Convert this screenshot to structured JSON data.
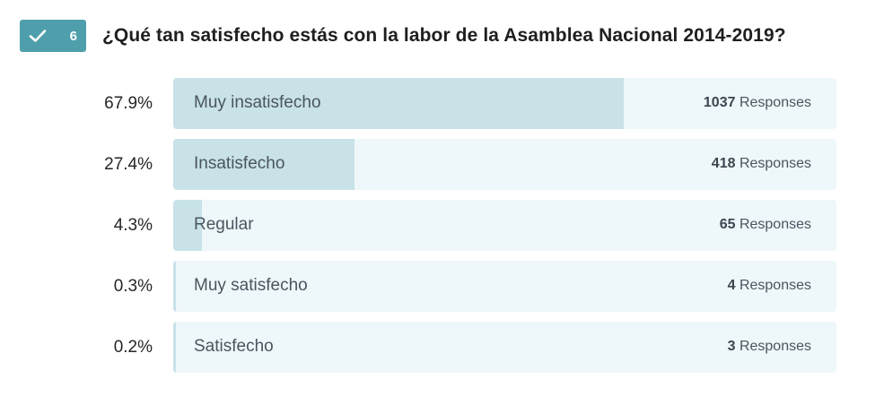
{
  "question": {
    "number": "6",
    "title": "¿Qué tan satisfecho estás con la labor de la Asamblea Nacional 2014-2019?",
    "badge_icon": "checkmark-icon"
  },
  "colors": {
    "badge": "#4e9fab",
    "track": "#eef7f9",
    "fill": "#c8e2e8",
    "title": "#1f1f1f"
  },
  "responses_word": "Responses",
  "chart_data": {
    "type": "bar",
    "orientation": "horizontal",
    "categories": [
      "Muy insatisfecho",
      "Insatisfecho",
      "Regular",
      "Muy satisfecho",
      "Satisfecho"
    ],
    "percentages": [
      "67.9%",
      "27.4%",
      "4.3%",
      "0.3%",
      "0.2%"
    ],
    "values": [
      67.9,
      27.4,
      4.3,
      0.3,
      0.2
    ],
    "responses": [
      1037,
      418,
      65,
      4,
      3
    ],
    "xlim": [
      0,
      100
    ]
  },
  "rows": [
    {
      "label": "Muy insatisfecho",
      "pct": "67.9%",
      "count": "1037"
    },
    {
      "label": "Insatisfecho",
      "pct": "27.4%",
      "count": "418"
    },
    {
      "label": "Regular",
      "pct": "4.3%",
      "count": "65"
    },
    {
      "label": "Muy satisfecho",
      "pct": "0.3%",
      "count": "4"
    },
    {
      "label": "Satisfecho",
      "pct": "0.2%",
      "count": "3"
    }
  ]
}
